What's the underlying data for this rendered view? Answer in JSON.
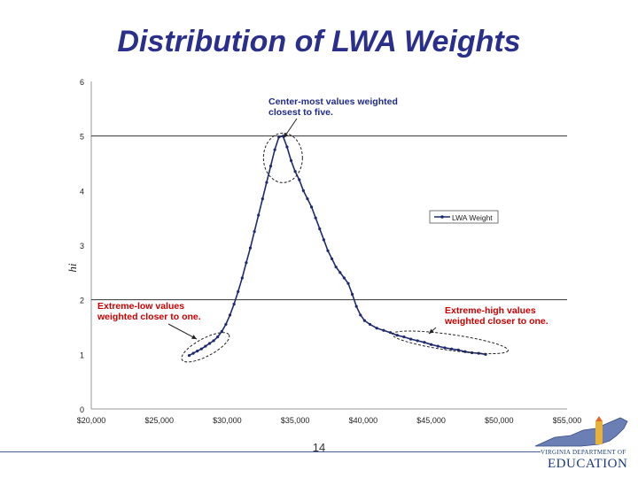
{
  "slide": {
    "title": "Distribution of LWA Weights",
    "page_number": "14"
  },
  "logo": {
    "line1": "VIRGINIA DEPARTMENT OF",
    "line2": "EDUCATION"
  },
  "colors": {
    "title": "#2b2f8c",
    "series": "#1f2a6e",
    "annotation_red": "#cc0000",
    "annotation_blue": "#1f2a8a"
  },
  "chart_data": {
    "type": "line",
    "title": "",
    "xlabel": "",
    "ylabel": "hi",
    "xlim": [
      20000,
      55000
    ],
    "ylim": [
      0,
      6
    ],
    "x_ticks": [
      20000,
      25000,
      30000,
      35000,
      40000,
      45000,
      50000,
      55000
    ],
    "x_tick_labels": [
      "$20,000",
      "$25,000",
      "$30,000",
      "$35,000",
      "$40,000",
      "$45,000",
      "$50,000",
      "$55,000"
    ],
    "y_ticks": [
      0,
      1,
      2,
      3,
      4,
      5,
      6
    ],
    "y_tick_labels": [
      "0",
      "1",
      "2",
      "3",
      "4",
      "5",
      "6"
    ],
    "gridlines_y": [
      5,
      2
    ],
    "legend": {
      "position": "right",
      "entries": [
        "LWA Weight"
      ]
    },
    "series": [
      {
        "name": "LWA Weight",
        "points": [
          [
            27200,
            0.98
          ],
          [
            27500,
            1.02
          ],
          [
            27800,
            1.06
          ],
          [
            28100,
            1.1
          ],
          [
            28400,
            1.15
          ],
          [
            28700,
            1.2
          ],
          [
            29000,
            1.25
          ],
          [
            29300,
            1.32
          ],
          [
            29600,
            1.42
          ],
          [
            29900,
            1.55
          ],
          [
            30200,
            1.72
          ],
          [
            30500,
            1.92
          ],
          [
            30800,
            2.15
          ],
          [
            31100,
            2.4
          ],
          [
            31400,
            2.68
          ],
          [
            31700,
            2.95
          ],
          [
            32000,
            3.25
          ],
          [
            32300,
            3.55
          ],
          [
            32600,
            3.85
          ],
          [
            32900,
            4.15
          ],
          [
            33200,
            4.45
          ],
          [
            33500,
            4.75
          ],
          [
            33800,
            4.98
          ],
          [
            34100,
            5.0
          ],
          [
            34400,
            4.8
          ],
          [
            34700,
            4.55
          ],
          [
            35000,
            4.35
          ],
          [
            35300,
            4.2
          ],
          [
            35600,
            4.0
          ],
          [
            35900,
            3.85
          ],
          [
            36200,
            3.7
          ],
          [
            36500,
            3.5
          ],
          [
            36800,
            3.3
          ],
          [
            37100,
            3.1
          ],
          [
            37400,
            2.9
          ],
          [
            37700,
            2.75
          ],
          [
            38000,
            2.6
          ],
          [
            38300,
            2.5
          ],
          [
            38600,
            2.4
          ],
          [
            38900,
            2.3
          ],
          [
            39200,
            2.1
          ],
          [
            39500,
            1.88
          ],
          [
            39800,
            1.72
          ],
          [
            40100,
            1.62
          ],
          [
            40500,
            1.55
          ],
          [
            41000,
            1.48
          ],
          [
            41500,
            1.44
          ],
          [
            42000,
            1.4
          ],
          [
            42500,
            1.35
          ],
          [
            43000,
            1.32
          ],
          [
            43500,
            1.28
          ],
          [
            44000,
            1.25
          ],
          [
            44500,
            1.22
          ],
          [
            45000,
            1.18
          ],
          [
            45500,
            1.15
          ],
          [
            46000,
            1.12
          ],
          [
            46500,
            1.1
          ],
          [
            47000,
            1.08
          ],
          [
            47500,
            1.05
          ],
          [
            48000,
            1.03
          ],
          [
            48500,
            1.02
          ],
          [
            49000,
            1.0
          ]
        ]
      }
    ],
    "annotations": [
      {
        "text_lines": [
          "Center-most values weighted",
          "closest to five."
        ],
        "color": "#1f2a8a"
      },
      {
        "text_lines": [
          "Extreme-low values",
          "weighted closer to one."
        ],
        "color": "#cc0000"
      },
      {
        "text_lines": [
          "Extreme-high values",
          "weighted closer to one."
        ],
        "color": "#cc0000"
      }
    ]
  }
}
